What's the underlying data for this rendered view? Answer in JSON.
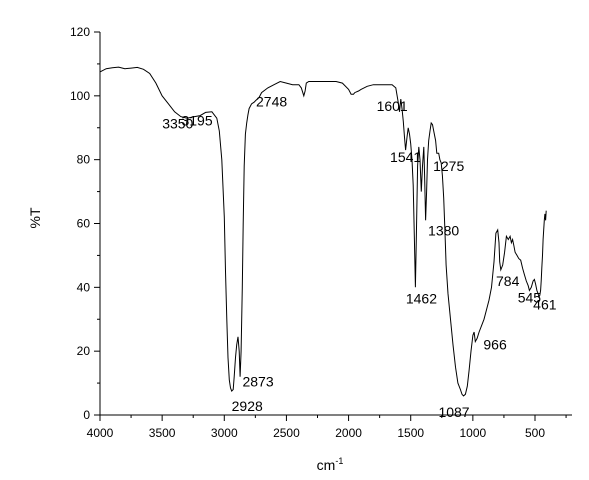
{
  "chart_data": {
    "type": "line",
    "title": "",
    "xlabel": "cm",
    "xlabel_superscript": "-1",
    "ylabel": "%T",
    "xlim": [
      4000,
      200
    ],
    "ylim": [
      0,
      120
    ],
    "x_reversed": true,
    "xticks": [
      4000,
      3500,
      3000,
      2500,
      2000,
      1500,
      1000,
      500
    ],
    "yticks": [
      0,
      20,
      40,
      60,
      80,
      100,
      120
    ],
    "grid": false,
    "legend": "none",
    "line_color": "#000000",
    "series": [
      {
        "x": [
          4000,
          3950,
          3900,
          3850,
          3800,
          3750,
          3700,
          3650,
          3600,
          3550,
          3500,
          3450,
          3400,
          3350,
          3300,
          3250,
          3195,
          3150,
          3100,
          3060,
          3040,
          3020,
          3000,
          2990,
          2980,
          2970,
          2960,
          2950,
          2940,
          2928,
          2920,
          2910,
          2900,
          2890,
          2880,
          2873,
          2865,
          2855,
          2848,
          2840,
          2830,
          2820,
          2810,
          2800,
          2780,
          2760,
          2748,
          2720,
          2700,
          2650,
          2600,
          2550,
          2500,
          2450,
          2400,
          2380,
          2360,
          2350,
          2340,
          2320,
          2300,
          2250,
          2200,
          2150,
          2100,
          2050,
          2000,
          1980,
          1960,
          1950,
          1920,
          1900,
          1850,
          1800,
          1750,
          1700,
          1650,
          1620,
          1601,
          1590,
          1580,
          1570,
          1560,
          1550,
          1541,
          1530,
          1520,
          1510,
          1500,
          1490,
          1480,
          1470,
          1462,
          1455,
          1445,
          1435,
          1425,
          1415,
          1405,
          1395,
          1388,
          1380,
          1372,
          1365,
          1355,
          1345,
          1335,
          1325,
          1315,
          1300,
          1290,
          1275,
          1265,
          1255,
          1245,
          1235,
          1225,
          1215,
          1200,
          1180,
          1160,
          1140,
          1120,
          1100,
          1087,
          1075,
          1060,
          1045,
          1030,
          1015,
          1000,
          990,
          980,
          966,
          950,
          930,
          910,
          890,
          870,
          850,
          830,
          815,
          800,
          790,
          784,
          775,
          760,
          745,
          730,
          715,
          700,
          690,
          680,
          670,
          660,
          645,
          630,
          615,
          600,
          585,
          570,
          555,
          545,
          530,
          515,
          505,
          495,
          485,
          475,
          468,
          461,
          455,
          450,
          445,
          440,
          435,
          430,
          425,
          420,
          415,
          410
        ],
        "y": [
          107.5,
          108.5,
          108.8,
          109.0,
          108.5,
          108.7,
          108.9,
          108.3,
          107.0,
          104.0,
          100.0,
          97.5,
          95.0,
          93.5,
          93.0,
          93.4,
          93.8,
          94.8,
          95.0,
          93.0,
          89.0,
          80.0,
          62.0,
          45.0,
          30.0,
          18.0,
          11.0,
          8.5,
          7.5,
          8.0,
          12.0,
          18.0,
          22.0,
          24.5,
          20.0,
          12.0,
          20.0,
          40.0,
          60.0,
          78.0,
          88.0,
          91.5,
          94.0,
          96.0,
          97.5,
          98.0,
          98.5,
          99.5,
          101.0,
          102.5,
          103.5,
          104.5,
          104.0,
          103.5,
          103.5,
          102.5,
          100.0,
          101.5,
          104.0,
          104.5,
          104.5,
          104.5,
          104.5,
          104.5,
          104.5,
          104.0,
          102.0,
          100.5,
          100.5,
          101.0,
          101.5,
          102.0,
          103.0,
          103.5,
          103.5,
          103.5,
          103.5,
          102.5,
          98.0,
          95.0,
          99.0,
          96.0,
          92.0,
          87.0,
          83.0,
          87.0,
          90.0,
          88.0,
          85.0,
          80.0,
          72.0,
          55.0,
          40.0,
          55.0,
          78.0,
          84.0,
          80.0,
          70.0,
          78.0,
          84.0,
          75.0,
          61.0,
          70.0,
          80.0,
          86.0,
          89.0,
          91.5,
          91.0,
          89.0,
          86.0,
          82.0,
          82.0,
          80.0,
          79.0,
          75.0,
          68.0,
          58.0,
          47.0,
          38.0,
          30.0,
          22.0,
          15.0,
          10.0,
          8.0,
          6.5,
          6.0,
          6.5,
          9.0,
          14.0,
          20.0,
          25.0,
          26.0,
          23.0,
          24.0,
          26.0,
          28.0,
          30.0,
          33.0,
          36.0,
          40.0,
          48.0,
          57.0,
          58.0,
          54.0,
          48.0,
          45.5,
          47.0,
          51.0,
          56.0,
          55.0,
          56.0,
          54.0,
          55.0,
          53.0,
          51.0,
          50.0,
          49.0,
          48.5,
          46.0,
          44.0,
          42.0,
          40.5,
          39.0,
          40.0,
          42.0,
          42.5,
          41.0,
          39.0,
          38.0,
          37.0,
          37.5,
          39.0,
          42.0,
          46.0,
          50.0,
          55.0,
          58.0,
          61.0,
          63.0,
          61.0,
          64.0
        ]
      }
    ],
    "annotations": [
      {
        "text": "3350",
        "x": 3350,
        "y": 93.5
      },
      {
        "text": "3195",
        "x": 3195,
        "y": 93.8
      },
      {
        "text": "2748",
        "x": 2748,
        "y": 98.5
      },
      {
        "text": "2873",
        "x": 2873,
        "y": 12.0
      },
      {
        "text": "2928",
        "x": 2928,
        "y": 7.5
      },
      {
        "text": "1601",
        "x": 1601,
        "y": 98.0
      },
      {
        "text": "1541",
        "x": 1541,
        "y": 83.0
      },
      {
        "text": "1275",
        "x": 1275,
        "y": 79.0
      },
      {
        "text": "1380",
        "x": 1380,
        "y": 61.0
      },
      {
        "text": "1462",
        "x": 1462,
        "y": 40.0
      },
      {
        "text": "1087",
        "x": 1087,
        "y": 6.0
      },
      {
        "text": "966",
        "x": 966,
        "y": 23.0
      },
      {
        "text": "784",
        "x": 784,
        "y": 45.5
      },
      {
        "text": "545",
        "x": 545,
        "y": 40.5
      },
      {
        "text": "461",
        "x": 461,
        "y": 37.5
      }
    ]
  }
}
